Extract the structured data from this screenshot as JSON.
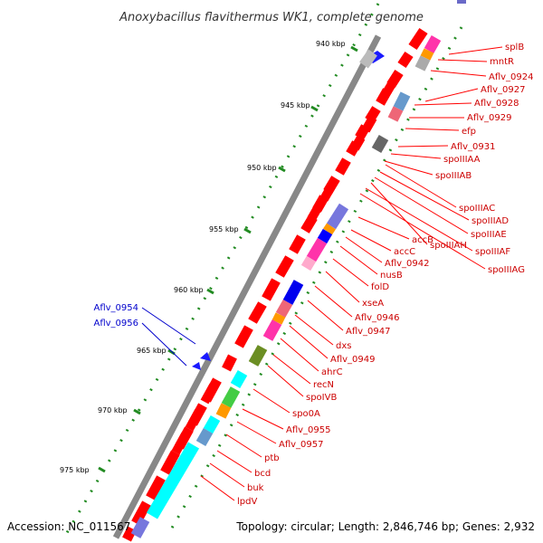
{
  "title": "Anoxybacillus flavithermus WK1, complete genome",
  "footer": {
    "accession": "Accession: NC_011567",
    "topology": "Topology: circular; Length: 2,846,746 bp; Genes: 2,932"
  },
  "scale_labels": [
    "940 kbp",
    "945 kbp",
    "950 kbp",
    "955 kbp",
    "960 kbp",
    "965 kbp",
    "970 kbp",
    "975 kbp"
  ],
  "colors": {
    "forward_gene": "#ff0000",
    "reverse_gene": "#0000ff",
    "forward_label": "#cc0000",
    "reverse_label": "#0000cc",
    "backbone": "#888888",
    "scale_ticks": "#228b22"
  },
  "forward_gene_labels": [
    "splB",
    "mntR",
    "Aflv_0924",
    "Aflv_0927",
    "Aflv_0928",
    "Aflv_0929",
    "efp",
    "Aflv_0931",
    "spoIIIAA",
    "spoIIIAB",
    "spoIIIAC",
    "spoIIIAD",
    "spoIIIAE",
    "spoIIIAH",
    "spoIIIAF",
    "spoIIIAG",
    "accB",
    "accC",
    "Aflv_0942",
    "nusB",
    "folD",
    "xseA",
    "Aflv_0946",
    "Aflv_0947",
    "dxs",
    "Aflv_0949",
    "ahrC",
    "recN",
    "spoIVB",
    "spo0A",
    "Aflv_0955",
    "Aflv_0957",
    "ptb",
    "bcd",
    "buk",
    "lpdV"
  ],
  "reverse_gene_labels": [
    "Aflv_0954",
    "Aflv_0956"
  ]
}
